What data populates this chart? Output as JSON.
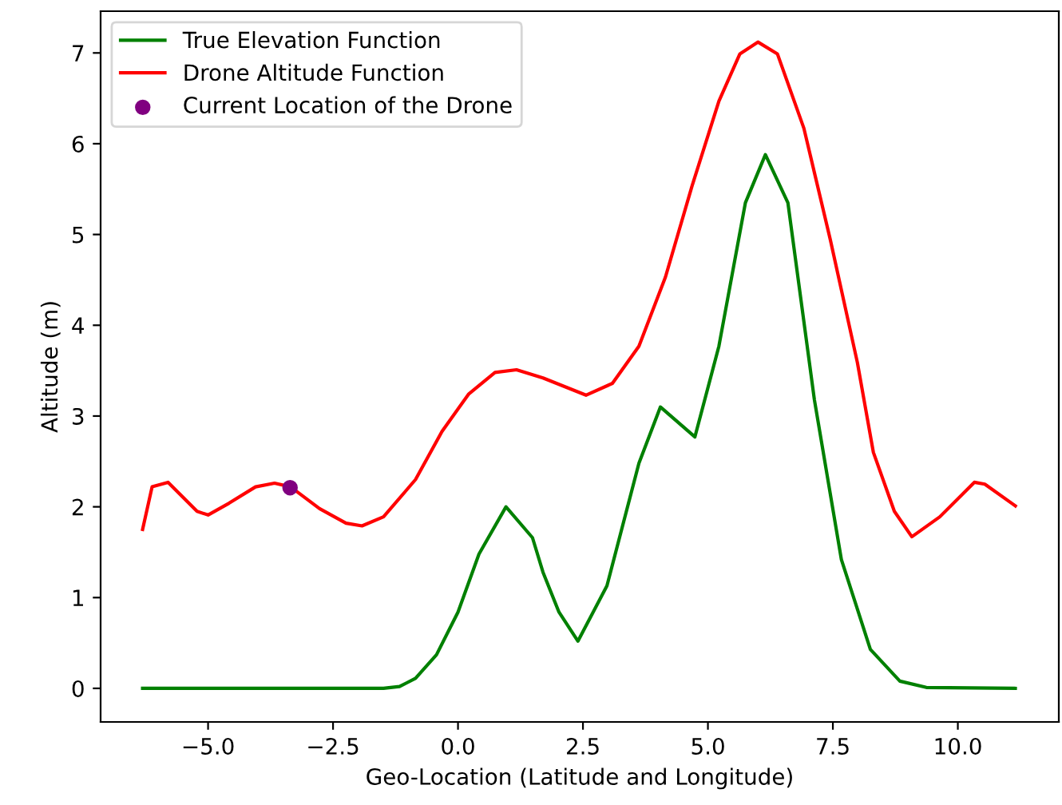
{
  "chart_data": {
    "type": "line",
    "xlabel": "Geo-Location (Latitude and Longitude)",
    "ylabel": "Altitude (m)",
    "xlim": [
      -7.15,
      12.02
    ],
    "ylim": [
      -0.37,
      7.46
    ],
    "xticks": [
      {
        "value": -5,
        "label": "−5.0"
      },
      {
        "value": -2.5,
        "label": "−2.5"
      },
      {
        "value": 0,
        "label": "0.0"
      },
      {
        "value": 2.5,
        "label": "2.5"
      },
      {
        "value": 5,
        "label": "5.0"
      },
      {
        "value": 7.5,
        "label": "7.5"
      },
      {
        "value": 10,
        "label": "10.0"
      }
    ],
    "yticks": [
      0,
      1,
      2,
      3,
      4,
      5,
      6,
      7
    ],
    "grid": false,
    "legend": "top left",
    "series": [
      {
        "name": "True Elevation Function",
        "color": "#008000",
        "x": [
          -6.31,
          -4.0,
          -2.0,
          -1.49,
          -1.17,
          -0.85,
          -0.43,
          0,
          0.42,
          0.96,
          1.49,
          1.7,
          2.02,
          2.4,
          2.98,
          3.62,
          4.05,
          4.74,
          5.22,
          5.75,
          6.15,
          6.6,
          7.13,
          7.67,
          8.25,
          8.84,
          9.37,
          11.15
        ],
        "values": [
          0,
          0,
          0,
          0,
          0.02,
          0.11,
          0.37,
          0.84,
          1.48,
          2.0,
          1.66,
          1.28,
          0.84,
          0.52,
          1.13,
          2.48,
          3.1,
          2.77,
          3.77,
          5.35,
          5.88,
          5.35,
          3.18,
          1.42,
          0.43,
          0.08,
          0.01,
          0
        ]
      },
      {
        "name": "Drone Altitude Function",
        "color": "#ff0000",
        "x": [
          -6.31,
          -6.12,
          -5.8,
          -5.22,
          -5.0,
          -4.58,
          -4.05,
          -3.67,
          -3.35,
          -2.77,
          -2.24,
          -1.92,
          -1.49,
          -0.85,
          -0.32,
          0.21,
          0.74,
          1.17,
          1.7,
          2.56,
          3.09,
          3.62,
          4.15,
          4.68,
          5.22,
          5.64,
          6.0,
          6.39,
          6.92,
          7.45,
          7.99,
          8.31,
          8.73,
          9.08,
          9.64,
          10.33,
          10.54,
          11.15
        ],
        "values": [
          1.75,
          2.22,
          2.27,
          1.95,
          1.91,
          2.04,
          2.22,
          2.26,
          2.22,
          1.98,
          1.82,
          1.79,
          1.89,
          2.3,
          2.83,
          3.24,
          3.48,
          3.51,
          3.42,
          3.23,
          3.36,
          3.77,
          4.53,
          5.53,
          6.47,
          6.99,
          7.12,
          6.99,
          6.17,
          4.94,
          3.59,
          2.6,
          1.95,
          1.67,
          1.89,
          2.27,
          2.25,
          2.01
        ]
      },
      {
        "name": "Current Location of the Drone",
        "type": "scatter",
        "color": "#800080",
        "marker": "circle",
        "x": [
          -3.36
        ],
        "values": [
          2.21
        ]
      }
    ]
  }
}
